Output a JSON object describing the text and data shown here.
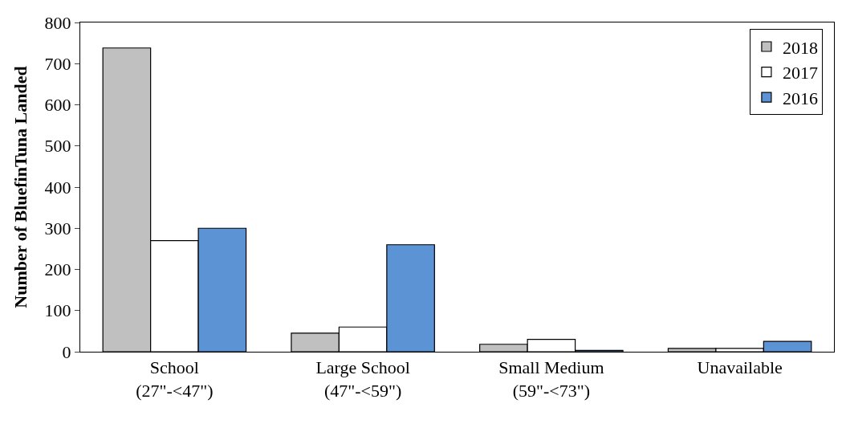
{
  "chart_data": {
    "type": "bar",
    "ylabel": "Number of BluefinTuna Landed",
    "categories": [
      "School\n(27\"-<47\")",
      "Large School\n(47\"-<59\")",
      "Small Medium\n(59\"-<73\")",
      "Unavailable"
    ],
    "series": [
      {
        "name": "2018",
        "color": "#c0c0c0",
        "values": [
          738,
          45,
          18,
          8
        ]
      },
      {
        "name": "2017",
        "color": "#ffffff",
        "values": [
          270,
          60,
          30,
          8
        ]
      },
      {
        "name": "2016",
        "color": "#5b93d5",
        "values": [
          300,
          260,
          3,
          25
        ]
      }
    ],
    "ylim": [
      0,
      800
    ],
    "yticks": [
      0,
      100,
      200,
      300,
      400,
      500,
      600,
      700,
      800
    ],
    "legend": "top right"
  }
}
